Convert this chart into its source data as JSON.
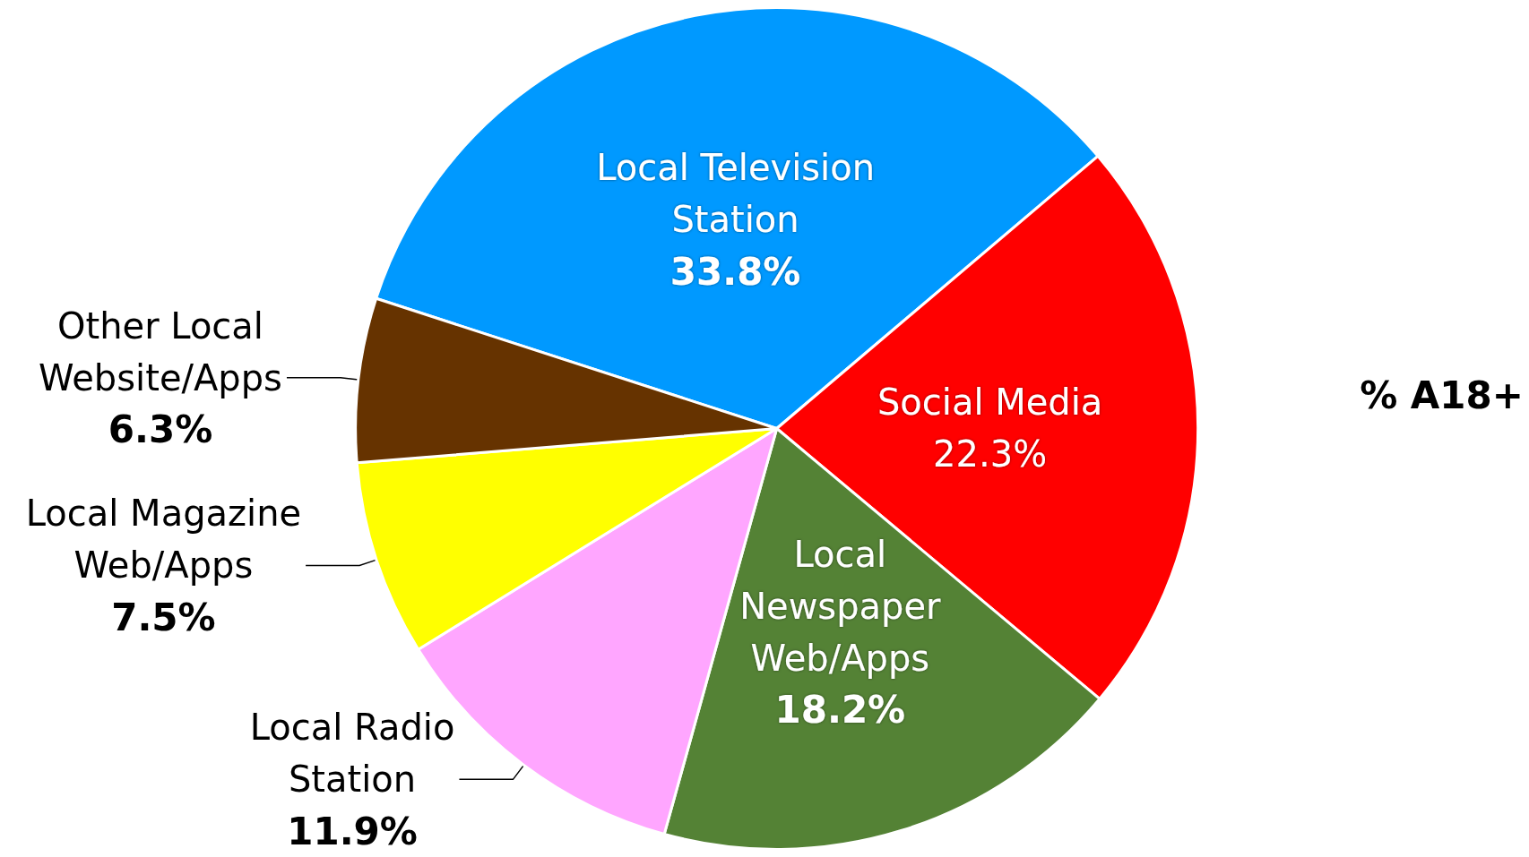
{
  "chart_data": {
    "type": "pie",
    "categories": [
      "Local Television Station",
      "Social Media",
      "Local Newspaper Web/Apps",
      "Local Radio Station",
      "Local Magazine Web/Apps",
      "Other Local Website/Apps"
    ],
    "values": [
      33.8,
      22.3,
      18.2,
      11.9,
      7.5,
      6.3
    ],
    "value_labels": [
      "33.8%",
      "22.3%",
      "18.2%",
      "11.9%",
      "7.5%",
      "6.3%"
    ],
    "colors": [
      "#0099ff",
      "#ff0000",
      "#548235",
      "#ffa6ff",
      "#ffff00",
      "#663300"
    ],
    "annotations": [
      "% A18+"
    ],
    "legend": false
  }
}
